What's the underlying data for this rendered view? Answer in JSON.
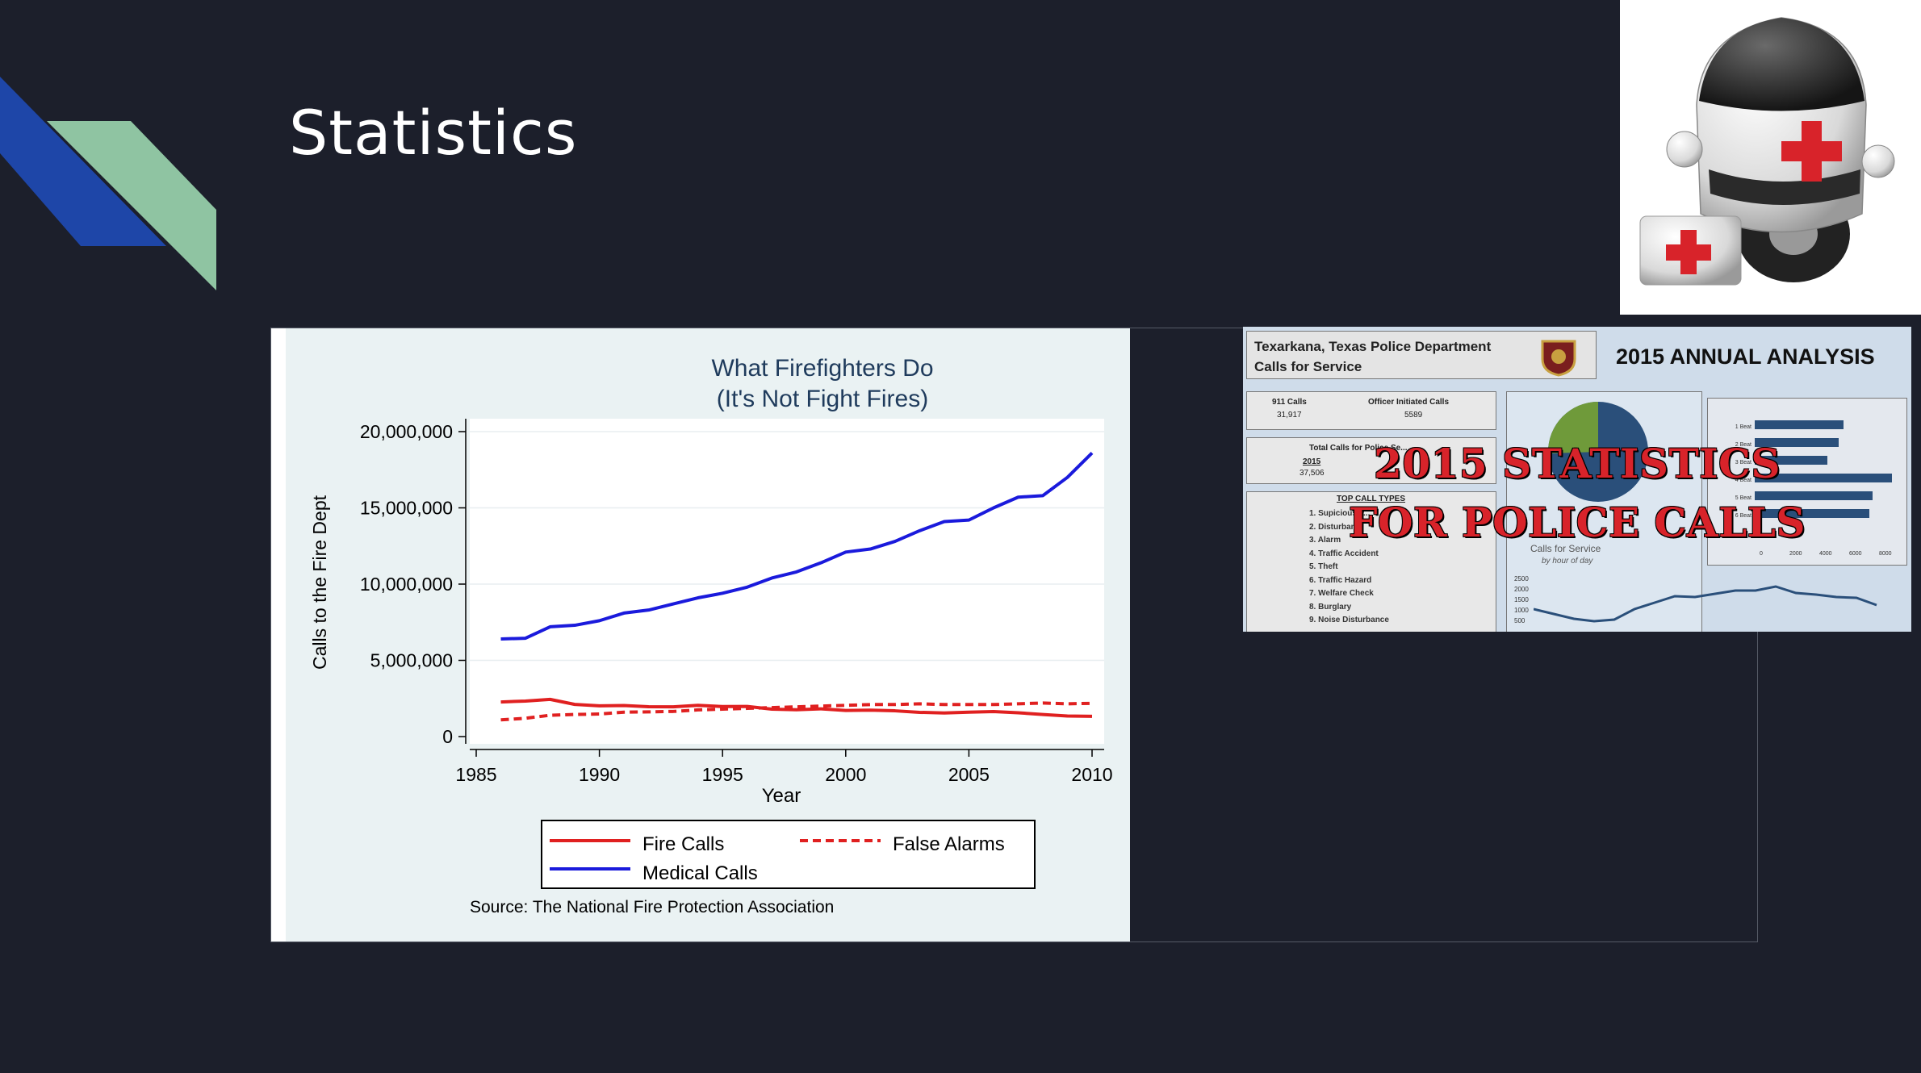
{
  "slide": {
    "title": "Statistics"
  },
  "chart_panel": {
    "title_line1": "What Firefighters Do",
    "title_line2": "(It's Not Fight Fires)",
    "source": "Source: The National Fire Protection Association"
  },
  "chart_data": {
    "type": "line",
    "title": "What Firefighters Do (It's Not Fight Fires)",
    "xlabel": "Year",
    "ylabel": "Calls to the Fire Dept",
    "xlim": [
      1985,
      2010
    ],
    "ylim": [
      0,
      20000000
    ],
    "x_ticks": [
      "1985",
      "1990",
      "1995",
      "2000",
      "2005",
      "2010"
    ],
    "y_ticks": [
      "0",
      "5,000,000",
      "10,000,000",
      "15,000,000",
      "20,000,000"
    ],
    "legend_position": "bottom",
    "x": [
      1986,
      1987,
      1988,
      1989,
      1990,
      1991,
      1992,
      1993,
      1994,
      1995,
      1996,
      1997,
      1998,
      1999,
      2000,
      2001,
      2002,
      2003,
      2004,
      2005,
      2006,
      2007,
      2008,
      2009,
      2010
    ],
    "series": [
      {
        "name": "Fire Calls",
        "color": "#e02020",
        "style": "solid",
        "values": [
          2270000,
          2330000,
          2440000,
          2110000,
          2020000,
          2040000,
          1960000,
          1950000,
          2050000,
          1970000,
          1980000,
          1800000,
          1760000,
          1820000,
          1710000,
          1730000,
          1690000,
          1590000,
          1550000,
          1600000,
          1640000,
          1560000,
          1450000,
          1350000,
          1330000
        ]
      },
      {
        "name": "False Alarms",
        "color": "#e02020",
        "style": "dashed",
        "values": [
          1100000,
          1200000,
          1400000,
          1450000,
          1480000,
          1600000,
          1620000,
          1650000,
          1750000,
          1800000,
          1850000,
          1900000,
          1950000,
          2000000,
          2050000,
          2100000,
          2100000,
          2150000,
          2100000,
          2100000,
          2100000,
          2150000,
          2200000,
          2150000,
          2180000
        ]
      },
      {
        "name": "Medical Calls",
        "color": "#1a1adc",
        "style": "solid",
        "values": [
          6400000,
          6450000,
          7200000,
          7300000,
          7600000,
          8100000,
          8300000,
          8700000,
          9100000,
          9400000,
          9800000,
          10400000,
          10800000,
          11400000,
          12100000,
          12300000,
          12800000,
          13500000,
          14100000,
          14200000,
          15000000,
          15700000,
          15800000,
          17000000,
          18600000
        ]
      }
    ]
  },
  "police_image": {
    "header_line1": "Texarkana, Texas Police Department",
    "header_line2": "Calls for Service",
    "analysis_title": "2015 ANNUAL ANALYSIS",
    "calls_911_label": "911 Calls",
    "calls_911_value": "31,917",
    "officer_label": "Officer Initiated Calls",
    "officer_value": "5589",
    "total_label": "Total Calls for Police Se...",
    "total_year": "2015",
    "total_value": "37,506",
    "top_types_label": "TOP CALL TYPES",
    "top_types": [
      "1. Supicious P...",
      "2. Disturban...",
      "3. Alarm",
      "4. Traffic Accident",
      "5. Theft",
      "6. Traffic Hazard",
      "7. Welfare Check",
      "8. Burglary",
      "9. Noise Disturbance"
    ],
    "line_label": "Calls for Service",
    "line_sublabel": "by hour of day",
    "line_y_ticks": [
      "2500",
      "2000",
      "1500",
      "1000",
      "500"
    ],
    "bar_labels": [
      "1 Beat",
      "2 Beat",
      "3 Beat",
      "4 Beat",
      "5 Beat",
      "6 Beat"
    ],
    "bar_x_ticks": [
      "0",
      "2000",
      "4000",
      "6000",
      "8000"
    ],
    "overlay_line1": "2015 STATISTICS",
    "overlay_line2": "FOR POLICE CALLS"
  }
}
